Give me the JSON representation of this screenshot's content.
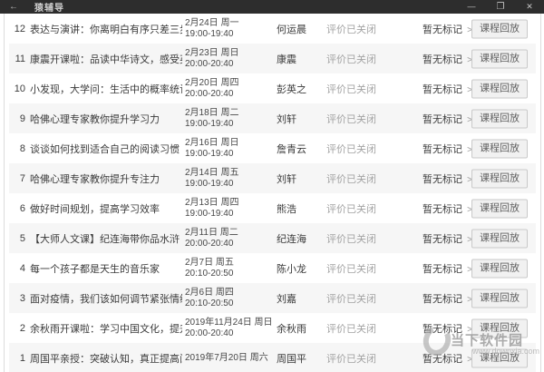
{
  "window": {
    "title": "猿辅导",
    "back_icon": "←",
    "minimize_icon": "—",
    "maximize_icon": "❐",
    "close_icon": "✕"
  },
  "colors": {
    "titlebar_bg": "#2d2d2d",
    "row_alt_bg": "#f6f6f6",
    "muted_text": "#a3a3a3",
    "button_bg": "#f1f1f1",
    "button_border": "#c9c9c9"
  },
  "row_common": {
    "evaluation_status": "评价已关闭",
    "notes_label": "暂无标记",
    "notes_arrow": ">",
    "replay_label": "课程回放"
  },
  "rows": [
    {
      "num": "12",
      "title": "表达与演讲：你离明白有序只差三步",
      "date": "2月24日 周一",
      "time": "19:00-19:40",
      "teacher": "何运晨",
      "shaded": false
    },
    {
      "num": "11",
      "title": "康震开课啦：品读中华诗文，感受英雄力量",
      "date": "2月23日 周日",
      "time": "20:00-20:40",
      "teacher": "康震",
      "shaded": true
    },
    {
      "num": "10",
      "title": "小发现，大学问：生活中的概率统计思维",
      "date": "2月20日 周四",
      "time": "20:00-20:40",
      "teacher": "彭英之",
      "shaded": false
    },
    {
      "num": "9",
      "title": "哈佛心理专家教你提升学习力",
      "date": "2月18日 周二",
      "time": "19:00-19:40",
      "teacher": "刘轩",
      "shaded": true
    },
    {
      "num": "8",
      "title": "谈谈如何找到适合自己的阅读习惯",
      "date": "2月16日 周日",
      "time": "19:00-19:40",
      "teacher": "詹青云",
      "shaded": false
    },
    {
      "num": "7",
      "title": "哈佛心理专家教你提升专注力",
      "date": "2月14日 周五",
      "time": "19:00-19:40",
      "teacher": "刘轩",
      "shaded": true
    },
    {
      "num": "6",
      "title": "做好时间规划，提高学习效率",
      "date": "2月13日 周四",
      "time": "19:00-19:40",
      "teacher": "熊浩",
      "shaded": false
    },
    {
      "num": "5",
      "title": "【大师人文课】纪连海带你品水浒",
      "date": "2月11日 周二",
      "time": "20:00-20:40",
      "teacher": "纪连海",
      "shaded": true
    },
    {
      "num": "4",
      "title": "每一个孩子都是天生的音乐家",
      "date": "2月7日 周五",
      "time": "20:10-20:50",
      "teacher": "陈小龙",
      "shaded": false
    },
    {
      "num": "3",
      "title": "面对疫情，我们该如何调节紧张情绪",
      "date": "2月6日 周四",
      "time": "20:10-20:50",
      "teacher": "刘嘉",
      "shaded": true
    },
    {
      "num": "2",
      "title": "余秋雨开课啦：学习中国文化，提升文学素养",
      "date": "2019年11月24日 周日",
      "time": "20:00-20:40",
      "teacher": "余秋雨",
      "shaded": false
    },
    {
      "num": "1",
      "title": "周国平亲授：突破认知，真正提高阅读与写作能力",
      "date": "2019年7月20日 周六",
      "time": "",
      "teacher": "周国平",
      "shaded": true
    }
  ],
  "watermark": {
    "site_name": "当下软件园",
    "site_url": "www.downxia.com"
  }
}
